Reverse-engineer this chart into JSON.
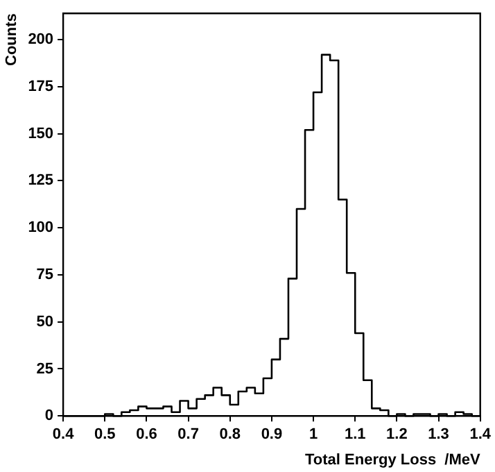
{
  "chart_data": {
    "type": "histogram",
    "xlabel": "Total Energy Loss  /MeV",
    "ylabel": "Counts",
    "bins": [
      0.4,
      0.42,
      0.44,
      0.46,
      0.48,
      0.5,
      0.52,
      0.54,
      0.56,
      0.58,
      0.6,
      0.62,
      0.64,
      0.66,
      0.68,
      0.7,
      0.72,
      0.74,
      0.76,
      0.78,
      0.8,
      0.82,
      0.84,
      0.86,
      0.88,
      0.9,
      0.92,
      0.94,
      0.96,
      0.98,
      1.0,
      1.02,
      1.04,
      1.06,
      1.08,
      1.1,
      1.12,
      1.14,
      1.16,
      1.18,
      1.2,
      1.22,
      1.24,
      1.26,
      1.28,
      1.3,
      1.32,
      1.34,
      1.36,
      1.38,
      1.4
    ],
    "values": [
      0,
      0,
      0,
      0,
      0,
      1,
      0,
      2,
      3,
      5,
      4,
      4,
      5,
      2,
      8,
      4,
      9,
      11,
      15,
      11,
      6,
      13,
      15,
      12,
      20,
      30,
      41,
      73,
      110,
      152,
      172,
      192,
      189,
      115,
      76,
      44,
      19,
      4,
      3,
      0,
      1,
      0,
      1,
      1,
      0,
      1,
      0,
      2,
      1,
      0
    ],
    "color": "#000000",
    "xlim": [
      0.4,
      1.4
    ],
    "xticks": [
      0.4,
      0.5,
      0.6,
      0.7,
      0.8,
      0.9,
      1,
      1.1,
      1.2,
      1.3,
      1.4
    ],
    "ylim": [
      0,
      214
    ],
    "yticks": [
      0,
      25,
      50,
      75,
      100,
      125,
      150,
      175,
      200
    ],
    "grid": false,
    "legend": false
  }
}
